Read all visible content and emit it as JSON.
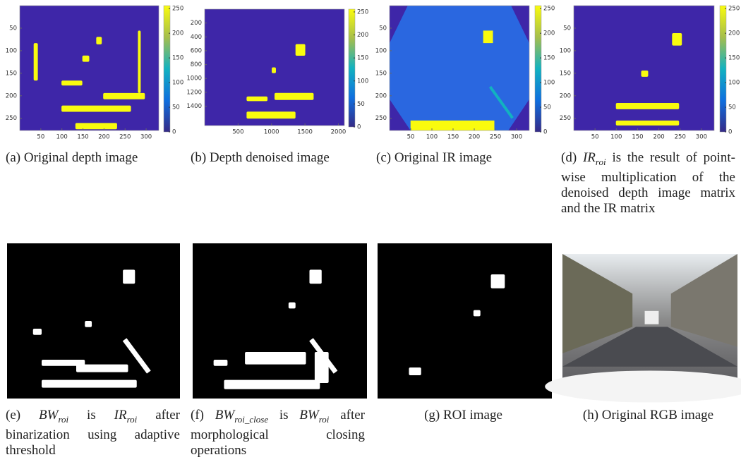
{
  "panels": [
    {
      "label": "(a)",
      "caption": [
        {
          "text": "Original depth image"
        }
      ],
      "xlim": [
        0,
        330
      ],
      "ylim": [
        0,
        277
      ],
      "xticks": [
        50,
        100,
        150,
        200,
        250,
        300
      ],
      "yticks": [
        50,
        100,
        150,
        200,
        250
      ],
      "clim": [
        0,
        256
      ],
      "colorbar_ticks": [
        0,
        50,
        100,
        150,
        200,
        250
      ]
    },
    {
      "label": "(b)",
      "caption": [
        {
          "text": "Depth denoised image"
        }
      ],
      "xlim": [
        0,
        2090
      ],
      "ylim": [
        0,
        1680
      ],
      "xticks": [
        500,
        1000,
        1500,
        2000
      ],
      "yticks": [
        200,
        400,
        600,
        800,
        1000,
        1200,
        1400
      ],
      "clim": [
        0,
        256
      ],
      "colorbar_ticks": [
        0,
        50,
        100,
        150,
        200,
        250
      ]
    },
    {
      "label": "(c)",
      "caption": [
        {
          "text": "Original IR image"
        }
      ],
      "xlim": [
        0,
        330
      ],
      "ylim": [
        0,
        277
      ],
      "xticks": [
        50,
        100,
        150,
        200,
        250,
        300
      ],
      "yticks": [
        50,
        100,
        150,
        200,
        250
      ],
      "clim": [
        0,
        256
      ],
      "colorbar_ticks": [
        0,
        50,
        100,
        150,
        200,
        250
      ]
    },
    {
      "label": "(d)",
      "caption": [
        {
          "text": "IR",
          "sub": "roi",
          "math": true
        },
        {
          "text": " is the result of point-wise multiplication of the denoised depth image matrix and the IR matrix"
        }
      ],
      "xlim": [
        0,
        330
      ],
      "ylim": [
        0,
        277
      ],
      "xticks": [
        50,
        100,
        150,
        200,
        250,
        300
      ],
      "yticks": [
        50,
        100,
        150,
        200,
        250
      ],
      "clim": [
        0,
        256
      ],
      "colorbar_ticks": [
        0,
        50,
        100,
        150,
        200,
        250
      ]
    },
    {
      "label": "(e)",
      "caption": [
        {
          "text": "BW",
          "sub": "roi",
          "math": true
        },
        {
          "text": " is "
        },
        {
          "text": "IR",
          "sub": "roi",
          "math": true
        },
        {
          "text": " after binarization using adaptive threshold"
        }
      ]
    },
    {
      "label": "(f)",
      "caption": [
        {
          "text": "BW",
          "sub": "roi_close",
          "math": true
        },
        {
          "text": " is "
        },
        {
          "text": "BW",
          "sub": "roi",
          "math": true
        },
        {
          "text": " after morphological closing operations"
        }
      ]
    },
    {
      "label": "(g)",
      "caption": [
        {
          "text": "ROI image"
        }
      ]
    },
    {
      "label": "(h)",
      "caption": [
        {
          "text": "Original RGB image"
        }
      ]
    }
  ]
}
